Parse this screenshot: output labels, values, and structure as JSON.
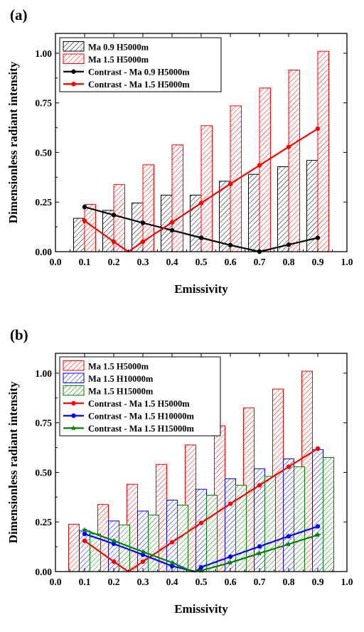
{
  "colors": {
    "black": "#000000",
    "red": "#ff0000",
    "blue": "#0000ff",
    "green": "#008000",
    "axis": "#000000"
  },
  "chart_data": [
    {
      "panel_label": "(a)",
      "type": "bar",
      "xlabel": "Emissivity",
      "ylabel": "Dimensionless radiant intensity",
      "xlim": [
        0.0,
        1.0
      ],
      "ylim": [
        0.0,
        1.1
      ],
      "xticks": [
        "0.0",
        "0.1",
        "0.2",
        "0.3",
        "0.4",
        "0.5",
        "0.6",
        "0.7",
        "0.8",
        "0.9",
        "1.0"
      ],
      "yticks": [
        "0.00",
        "0.25",
        "0.50",
        "0.75",
        "1.00"
      ],
      "legend_position": "top-left",
      "x": [
        0.1,
        0.2,
        0.3,
        0.4,
        0.5,
        0.6,
        0.7,
        0.8,
        0.9
      ],
      "bar_series": [
        {
          "name": "Ma 0.9 H5000m",
          "color": "#000000",
          "values": [
            0.168,
            0.208,
            0.245,
            0.285,
            0.285,
            0.355,
            0.39,
            0.428,
            0.46
          ]
        },
        {
          "name": "Ma 1.5 H5000m",
          "color": "#ff0000",
          "values": [
            0.238,
            0.338,
            0.438,
            0.538,
            0.635,
            0.735,
            0.825,
            0.915,
            1.01
          ]
        }
      ],
      "line_series": [
        {
          "name": "Contrast - Ma 0.9 H5000m",
          "color": "#000000",
          "marker": "circle",
          "x": [
            0.1,
            0.2,
            0.3,
            0.4,
            0.5,
            0.6,
            0.7,
            0.8,
            0.9
          ],
          "y": [
            0.225,
            0.185,
            0.145,
            0.108,
            0.07,
            0.033,
            0.0,
            0.035,
            0.07
          ]
        },
        {
          "name": "Contrast - Ma 1.5 H5000m",
          "color": "#ff0000",
          "marker": "circle",
          "x": [
            0.1,
            0.2,
            0.25,
            0.3,
            0.4,
            0.5,
            0.6,
            0.7,
            0.8,
            0.9
          ],
          "y": [
            0.155,
            0.05,
            0.0,
            0.05,
            0.148,
            0.245,
            0.342,
            0.435,
            0.528,
            0.62
          ],
          "markers_at": [
            0.1,
            0.2,
            0.3,
            0.4,
            0.5,
            0.6,
            0.7,
            0.8,
            0.9
          ]
        }
      ]
    },
    {
      "panel_label": "(b)",
      "type": "bar",
      "xlabel": "Emissivity",
      "ylabel": "Dimensionless radiant intensity",
      "xlim": [
        0.0,
        1.0
      ],
      "ylim": [
        0.0,
        1.1
      ],
      "xticks": [
        "0.0",
        "0.1",
        "0.2",
        "0.3",
        "0.4",
        "0.5",
        "0.6",
        "0.7",
        "0.8",
        "0.9",
        "1.0"
      ],
      "yticks": [
        "0.00",
        "0.25",
        "0.50",
        "0.75",
        "1.00"
      ],
      "legend_position": "top-left",
      "x": [
        0.1,
        0.2,
        0.3,
        0.4,
        0.5,
        0.6,
        0.7,
        0.8,
        0.9
      ],
      "bar_series": [
        {
          "name": "Ma 1.5 H5000m",
          "color": "#ff0000",
          "values": [
            0.238,
            0.338,
            0.44,
            0.54,
            0.638,
            0.735,
            0.825,
            0.92,
            1.01
          ]
        },
        {
          "name": "Ma 1.5 H10000m",
          "color": "#0000ff",
          "values": [
            0.205,
            0.255,
            0.305,
            0.36,
            0.415,
            0.468,
            0.518,
            0.568,
            0.615
          ]
        },
        {
          "name": "Ma 1.5 H15000m",
          "color": "#008000",
          "values": [
            0.19,
            0.235,
            0.285,
            0.335,
            0.385,
            0.435,
            0.48,
            0.528,
            0.575
          ]
        }
      ],
      "line_series": [
        {
          "name": "Contrast - Ma 1.5 H5000m",
          "color": "#ff0000",
          "marker": "circle",
          "x": [
            0.1,
            0.2,
            0.25,
            0.3,
            0.4,
            0.5,
            0.6,
            0.7,
            0.8,
            0.9
          ],
          "y": [
            0.155,
            0.05,
            0.0,
            0.05,
            0.148,
            0.245,
            0.342,
            0.435,
            0.528,
            0.62
          ],
          "markers_at": [
            0.1,
            0.2,
            0.3,
            0.4,
            0.5,
            0.6,
            0.7,
            0.8,
            0.9
          ]
        },
        {
          "name": "Contrast - Ma 1.5 H10000m",
          "color": "#0000ff",
          "marker": "circle",
          "x": [
            0.1,
            0.2,
            0.3,
            0.4,
            0.48,
            0.5,
            0.6,
            0.7,
            0.8,
            0.9
          ],
          "y": [
            0.19,
            0.14,
            0.085,
            0.028,
            0.0,
            0.022,
            0.075,
            0.127,
            0.178,
            0.228
          ],
          "markers_at": [
            0.1,
            0.2,
            0.3,
            0.4,
            0.5,
            0.6,
            0.7,
            0.8,
            0.9
          ]
        },
        {
          "name": "Contrast - Ma 1.5 H15000m",
          "color": "#008000",
          "marker": "star",
          "x": [
            0.1,
            0.2,
            0.3,
            0.4,
            0.47,
            0.5,
            0.6,
            0.7,
            0.8,
            0.9
          ],
          "y": [
            0.21,
            0.155,
            0.1,
            0.045,
            0.0,
            0.005,
            0.045,
            0.092,
            0.138,
            0.185
          ],
          "markers_at": [
            0.1,
            0.2,
            0.3,
            0.4,
            0.5,
            0.6,
            0.7,
            0.8,
            0.9
          ]
        }
      ]
    }
  ]
}
